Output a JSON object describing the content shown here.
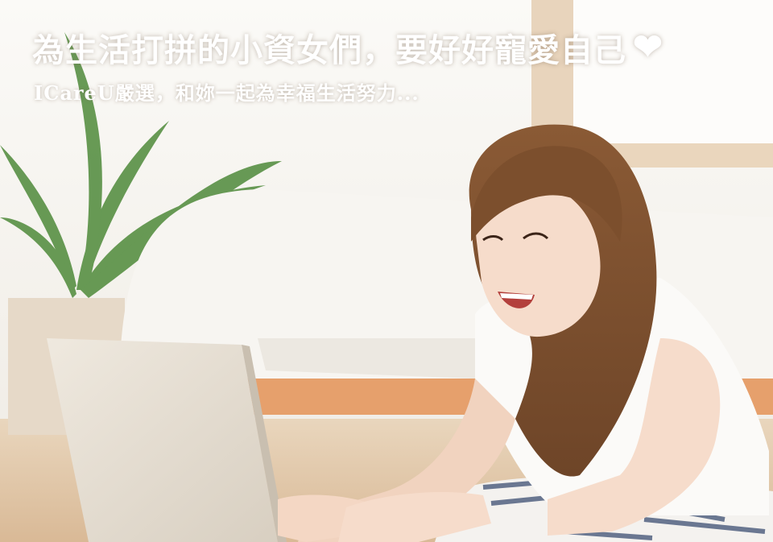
{
  "banner": {
    "headline": "為生活打拼的小資女們，要好好寵愛自己",
    "subline": "ICareU嚴選，和妳一起為幸福生活努力...",
    "heart_icon": "heart-icon",
    "text_color": "#ffffff"
  }
}
